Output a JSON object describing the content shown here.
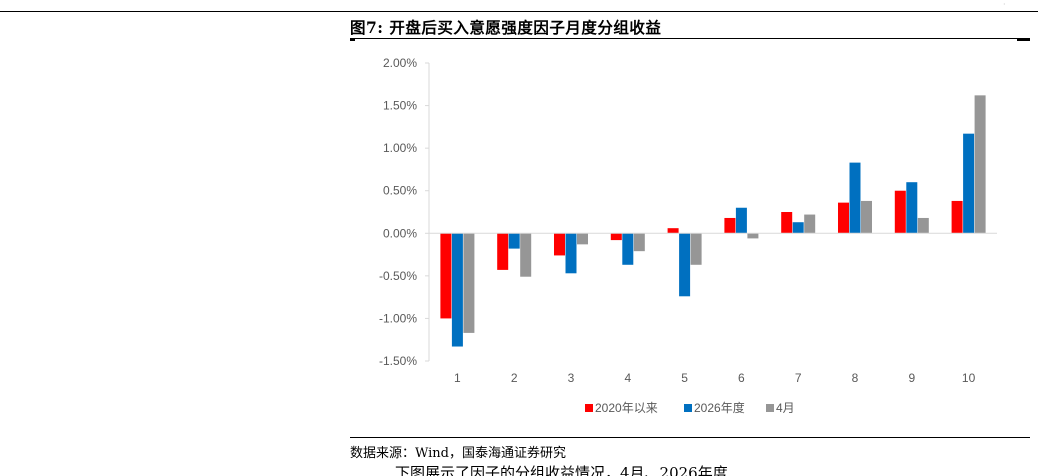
{
  "figure": {
    "title": "图7: 开盘后买入意愿强度因子月度分组收益",
    "source": "数据来源：Wind，国泰海通证券研究",
    "clipped_next_line": "下图展示了因子的分组收益情况，4月、2026年度"
  },
  "colors": {
    "series_2020": "#ff0000",
    "series_2026": "#0070c0",
    "series_apr": "#969696",
    "axis": "#d9d9d9",
    "text": "#595959"
  },
  "chart_data": {
    "type": "bar",
    "title": "图7: 开盘后买入意愿强度因子月度分组收益",
    "xlabel": "",
    "ylabel": "",
    "categories": [
      "1",
      "2",
      "3",
      "4",
      "5",
      "6",
      "7",
      "8",
      "9",
      "10"
    ],
    "series": [
      {
        "name": "2020年以来",
        "color": "#ff0000",
        "values": [
          -1.0,
          -0.43,
          -0.26,
          -0.08,
          0.06,
          0.18,
          0.25,
          0.36,
          0.5,
          0.38
        ]
      },
      {
        "name": "2026年度",
        "color": "#0070c0",
        "values": [
          -1.33,
          -0.18,
          -0.47,
          -0.37,
          -0.74,
          0.3,
          0.13,
          0.83,
          0.6,
          1.17
        ]
      },
      {
        "name": "4月",
        "color": "#969696",
        "values": [
          -1.17,
          -0.51,
          -0.13,
          -0.21,
          -0.37,
          -0.06,
          0.22,
          0.38,
          0.18,
          1.62
        ]
      }
    ],
    "ylim": [
      -1.5,
      2.0
    ],
    "yticks": [
      -1.5,
      -1.0,
      -0.5,
      0.0,
      0.5,
      1.0,
      1.5,
      2.0
    ],
    "ytick_labels": [
      "-1.50%",
      "-1.00%",
      "-0.50%",
      "0.00%",
      "0.50%",
      "1.00%",
      "1.50%",
      "2.00%"
    ],
    "value_format": "percent",
    "grid": false,
    "legend_position": "bottom"
  }
}
